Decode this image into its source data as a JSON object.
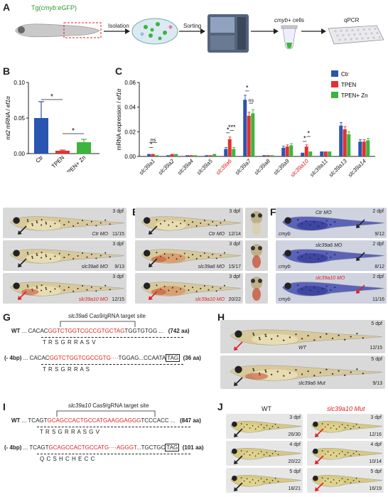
{
  "panelA": {
    "letter": "A",
    "fish_label_prefix": "Tg(",
    "fish_label_gene": "cmyb",
    "fish_label_suffix": ":eGFP)",
    "step1": "Isolation",
    "step2": "Sorting",
    "cells_gene": "cmyb",
    "cells_suffix": "+ cells",
    "step4": "qPCR"
  },
  "panelB": {
    "letter": "B",
    "chart_data": {
      "type": "bar",
      "categories": [
        "Ctr",
        "TPEN",
        "TPEN+ Zn"
      ],
      "values": [
        0.05,
        0.004,
        0.016
      ],
      "errors": [
        0.023,
        0.001,
        0.004
      ],
      "colors": [
        "#2a55b0",
        "#e53030",
        "#3cb53c"
      ],
      "ylabel_gene": "mt2",
      "ylabel_rest": " mRNA / ",
      "ylabel_ref": "ef1α",
      "ylim": [
        0,
        0.1
      ],
      "yticks": [
        "0.00",
        "0.05",
        "0.10"
      ],
      "significance": [
        "*",
        "*"
      ]
    }
  },
  "panelC": {
    "letter": "C",
    "chart_data": {
      "type": "bar",
      "categories": [
        "slc39a1",
        "slc39a2",
        "slc39a4",
        "slc39a5",
        "slc39a6",
        "slc39a7",
        "slc39a8",
        "slc39a9",
        "slc39a10",
        "slc39a11",
        "slc39a13",
        "slc39a14"
      ],
      "highlighted": [
        "slc39a6",
        "slc39a10"
      ],
      "series": [
        {
          "name": "Ctr",
          "color": "#2a55b0",
          "values": [
            0.002,
            0.001,
            0.001,
            0.001,
            0.006,
            0.046,
            0.001,
            0.007,
            0.003,
            0.004,
            0.025,
            0.012
          ]
        },
        {
          "name": "TPEN",
          "color": "#e53030",
          "values": [
            0.002,
            0.002,
            0.001,
            0.001,
            0.014,
            0.033,
            0.001,
            0.008,
            0.008,
            0.004,
            0.022,
            0.012
          ]
        },
        {
          "name": "TPEN+ Zn",
          "color": "#3cb53c",
          "values": [
            0.001,
            0.002,
            0.001,
            0.002,
            0.006,
            0.035,
            0.001,
            0.009,
            0.004,
            0.004,
            0.018,
            0.013
          ]
        }
      ],
      "ylabel_rest": "mRNA expression / ",
      "ylabel_ref": "ef1α",
      "ylim": [
        0,
        0.06
      ],
      "yticks": [
        "0.00",
        "0.02",
        "0.04",
        "0.06"
      ],
      "annotations": [
        "*",
        "ns",
        "*",
        "***",
        "*",
        "ns",
        "*",
        "*"
      ]
    }
  },
  "panelD": {
    "letter": "D",
    "rows": [
      {
        "dpf": "3 dpf",
        "label": "Ctr MO",
        "count": "11/15"
      },
      {
        "dpf": "3 dpf",
        "label": "slc39a6 MO",
        "count": "9/13"
      },
      {
        "dpf": "3 dpf",
        "label": "slc39a10 MO",
        "count": "12/15"
      }
    ]
  },
  "panelE": {
    "letter": "E",
    "rows": [
      {
        "dpf": "3 dpf",
        "label": "Ctr MO",
        "count": "12/14"
      },
      {
        "dpf": "3 dpf",
        "label": "slc39a6 MO",
        "count": "15/17"
      },
      {
        "dpf": "3 dpf",
        "label": "slc39a10 MO",
        "count": "20/22"
      }
    ]
  },
  "panelF": {
    "letter": "F",
    "rows": [
      {
        "dpf": "2 dpf",
        "label": "Ctr MO",
        "gene": "cmyb",
        "count": "9/12"
      },
      {
        "dpf": "2 dpf",
        "label": "slc39a6 MO",
        "gene": "cmyb",
        "count": "8/12"
      },
      {
        "dpf": "2 dpf",
        "label": "slc39a10 MO",
        "gene": "cmyb",
        "count": "11/16"
      }
    ]
  },
  "panelG": {
    "letter": "G",
    "target_gene": "slc39a6",
    "target_rest": " Cas9/gRNA target site",
    "wt_label": "WT",
    "wt_pre": "... CACAC",
    "wt_red": "GGTCTGGTCGCCGTGCTAG",
    "wt_post": "TGGTGTGG ...",
    "wt_len": "(742 aa)",
    "wt_aa": "T    R    S    G    R    R    A    S    V",
    "mut_label": "(- 4bp)",
    "mut_pre": "... CACAC",
    "mut_red": "GGTCTGGTCGCCGTG",
    "mut_dots": "····",
    "mut_post": "TGGAG...CCAATA",
    "mut_stop": "TAG",
    "mut_len": "(36 aa)",
    "mut_aa": "T    R    S    G    R    R    A    S"
  },
  "panelH": {
    "letter": "H",
    "rows": [
      {
        "dpf": "5 dpf",
        "label": "WT",
        "count": "12/15"
      },
      {
        "dpf": "5 dpf",
        "label": "slc39a6 Mut",
        "count": "9/13"
      }
    ]
  },
  "panelI": {
    "letter": "I",
    "target_gene": "slc39a10",
    "target_rest": " Cas9/gRNA target site",
    "wt_label": "WT",
    "wt_pre": "... TCAGT",
    "wt_red": "GCAGCCACTGCCATGAAGGAGGG",
    "wt_post": "TCCCACC ...",
    "wt_len": "(847 aa)",
    "wt_aa": "T    R    S    G    R    R    A    S    G    V",
    "mut_label": "(- 4bp)",
    "mut_pre": "... TCAGT",
    "mut_red": "GCAGCCACTGCCATG",
    "mut_dots": "····",
    "mut_red2": "AGGGT",
    "mut_post": "...TGCTGC",
    "mut_stop": "TAG",
    "mut_len": "(101 aa)",
    "mut_aa": "Q    C    S    H    C    H              E         C    C"
  },
  "panelJ": {
    "letter": "J",
    "wt_header": "WT",
    "mut_header": "slc39a10 Mut",
    "wt": [
      {
        "dpf": "3 dpf",
        "count": "26/30"
      },
      {
        "dpf": "4 dpf",
        "count": "20/22"
      },
      {
        "dpf": "5 dpf",
        "count": "18/21"
      }
    ],
    "mut": [
      {
        "dpf": "3 dpf",
        "count": "12/16"
      },
      {
        "dpf": "4 dpf",
        "count": "10/14"
      },
      {
        "dpf": "5 dpf",
        "count": "16/19"
      }
    ]
  }
}
